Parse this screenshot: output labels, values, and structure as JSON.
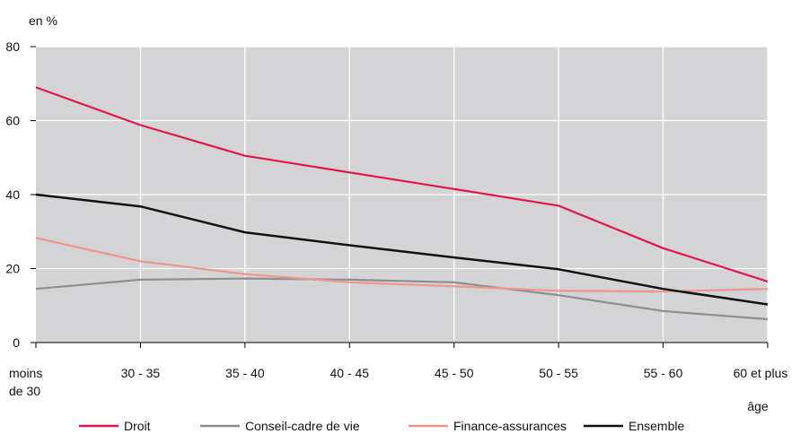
{
  "chart_data": {
    "type": "line",
    "ylabel": "en %",
    "xlabel": "âge",
    "categories": [
      "moins de 30",
      "30 - 35",
      "35 - 40",
      "40 - 45",
      "45 - 50",
      "50 - 55",
      "55 - 60",
      "60 et plus"
    ],
    "ylim": [
      0,
      80
    ],
    "yticks": [
      0,
      20,
      40,
      60,
      80
    ],
    "grid": true,
    "legend": "bottom",
    "series": [
      {
        "name": "Droit",
        "color": "#e0174b",
        "values": [
          69,
          58.8,
          50.5,
          46,
          41.5,
          37,
          25.5,
          16.5
        ]
      },
      {
        "name": "Conseil-cadre de vie",
        "color": "#8f8f8f",
        "values": [
          14.5,
          17,
          17.3,
          17,
          16.3,
          12.8,
          8.5,
          6.3
        ]
      },
      {
        "name": "Finance-assurances",
        "color": "#f0958a",
        "values": [
          28.3,
          22,
          18.5,
          16.3,
          15.2,
          14,
          13.8,
          14.5
        ]
      },
      {
        "name": "Ensemble",
        "color": "#111111",
        "values": [
          40,
          36.8,
          29.8,
          26.3,
          23,
          19.8,
          14.5,
          10.3
        ]
      }
    ]
  }
}
